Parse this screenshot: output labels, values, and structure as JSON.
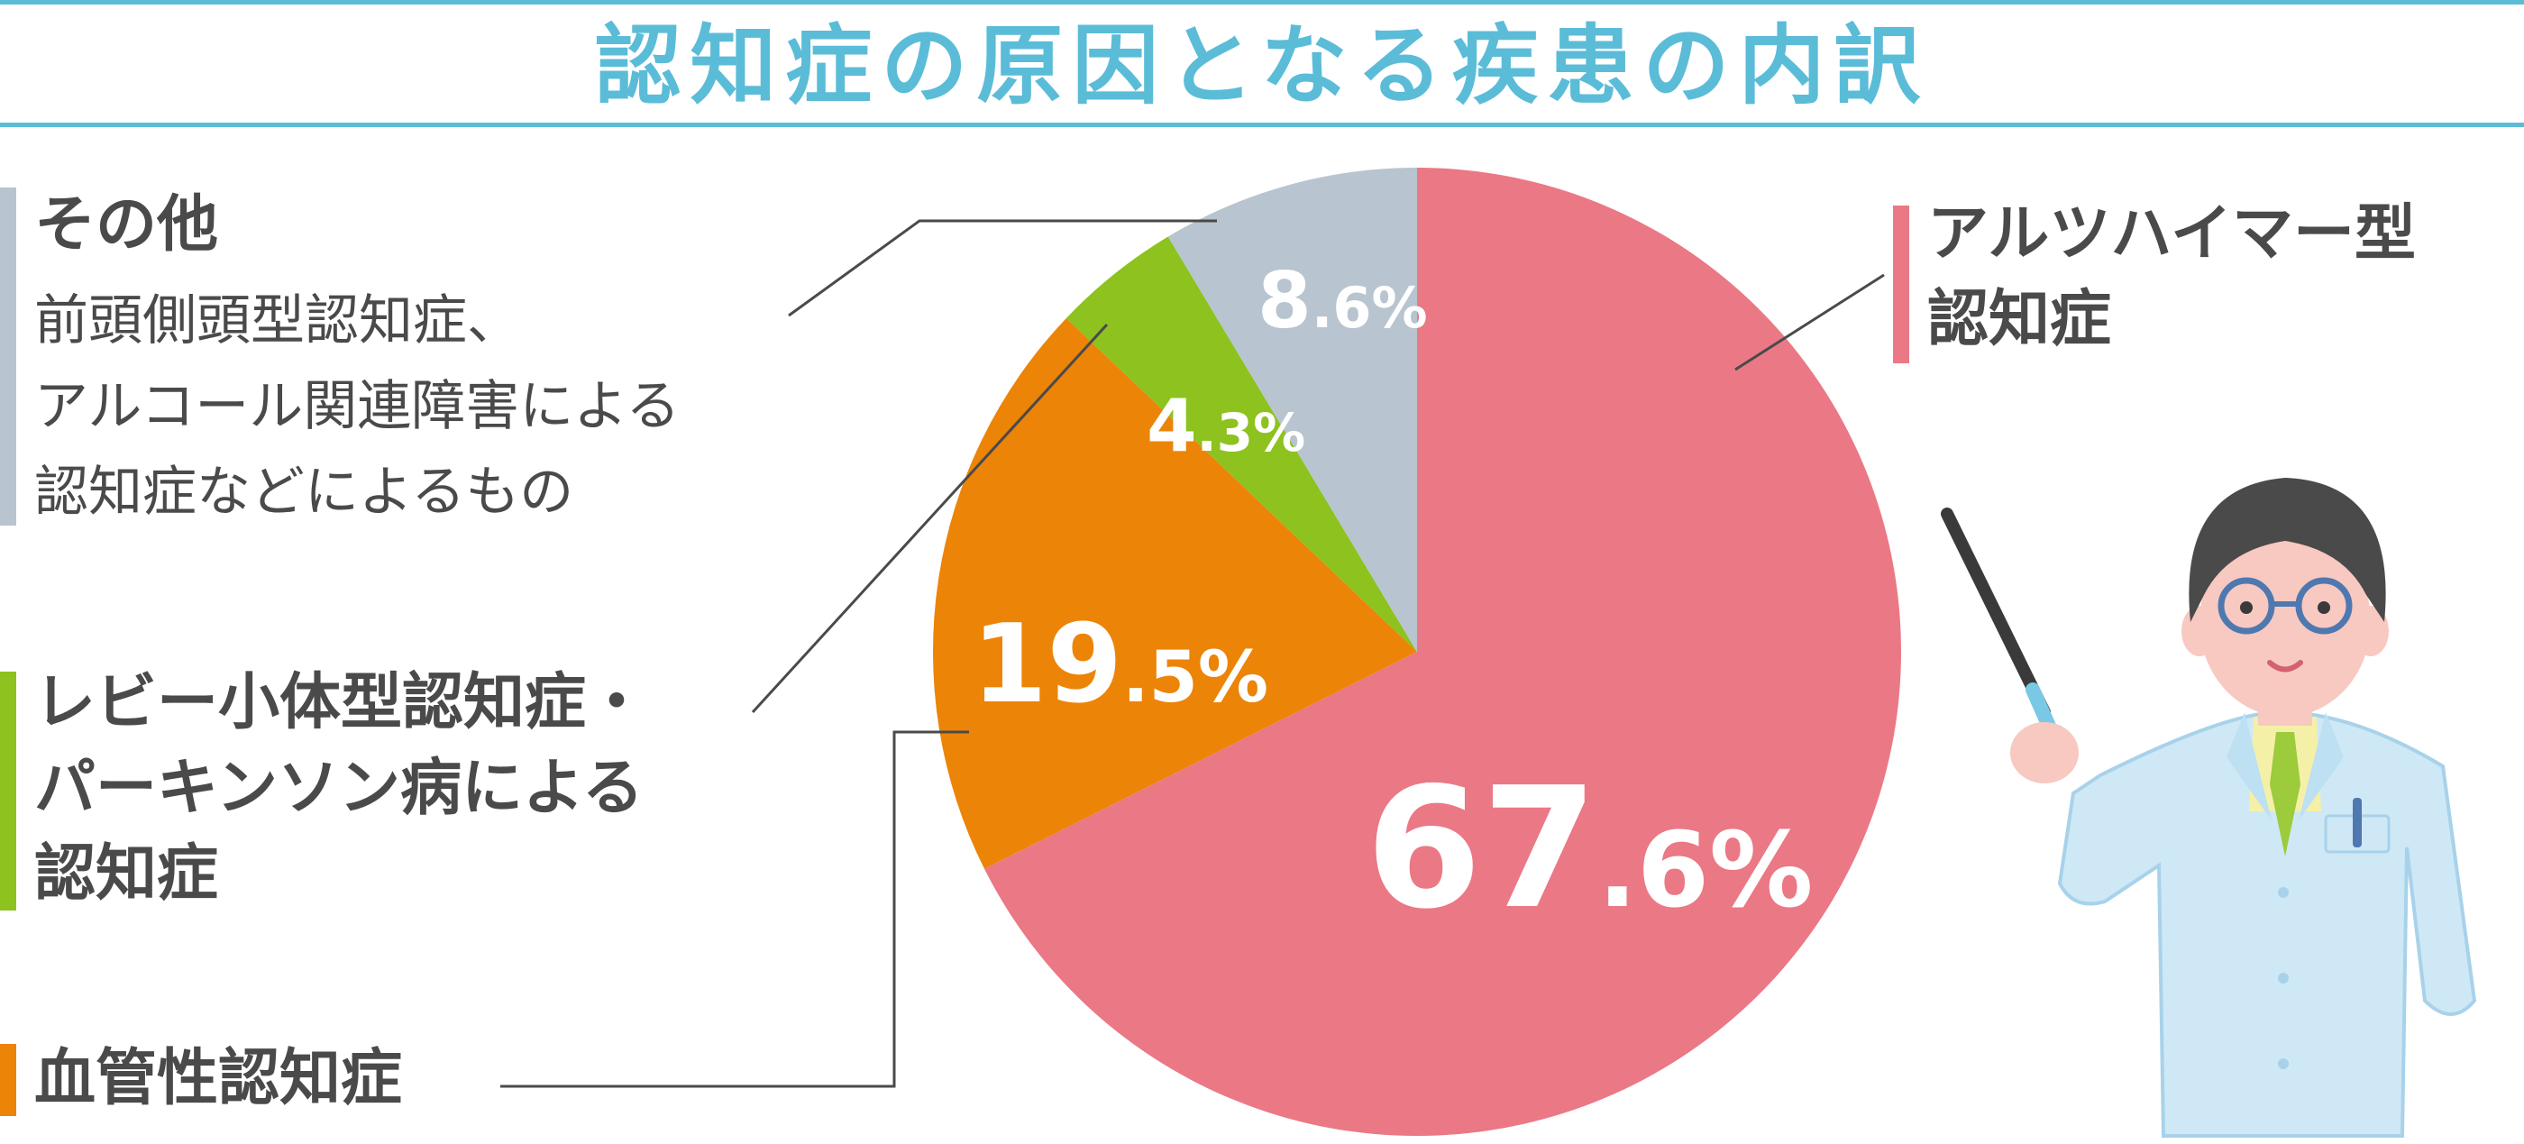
{
  "title": "認知症の原因となる疾患の内訳",
  "chart_data": {
    "type": "pie",
    "title": "認知症の原因となる疾患の内訳",
    "slices": [
      {
        "label_lines": [
          "アルツハイマー型",
          "認知症"
        ],
        "value": 67.6,
        "int": "67",
        "dec": ".6",
        "color": "#eb7885"
      },
      {
        "label_lines": [
          "血管性認知症"
        ],
        "value": 19.5,
        "int": "19",
        "dec": ".5",
        "color": "#ec8408"
      },
      {
        "label_lines": [
          "レビー小体型認知症・",
          "パーキンソン病による",
          "認知症"
        ],
        "value": 4.3,
        "int": "4",
        "dec": ".3",
        "color": "#8dc21f"
      },
      {
        "label_lines": [
          "その他"
        ],
        "sublabel_lines": [
          "前頭側頭型認知症、",
          "アルコール関連障害による",
          "認知症などによるもの"
        ],
        "value": 8.6,
        "int": "8",
        "dec": ".6",
        "color": "#b8c4cf"
      }
    ],
    "unit": "%"
  },
  "legend": {
    "alz": {
      "line1": "アルツハイマー型",
      "line2": "認知症"
    },
    "vascular": {
      "line1": "血管性認知症"
    },
    "lewy": {
      "line1": "レビー小体型認知症・",
      "line2": "パーキンソン病による",
      "line3": "認知症"
    },
    "other": {
      "line1": "その他",
      "sub1": "前頭側頭型認知症、",
      "sub2": "アルコール関連障害による",
      "sub3": "認知症などによるもの"
    }
  }
}
